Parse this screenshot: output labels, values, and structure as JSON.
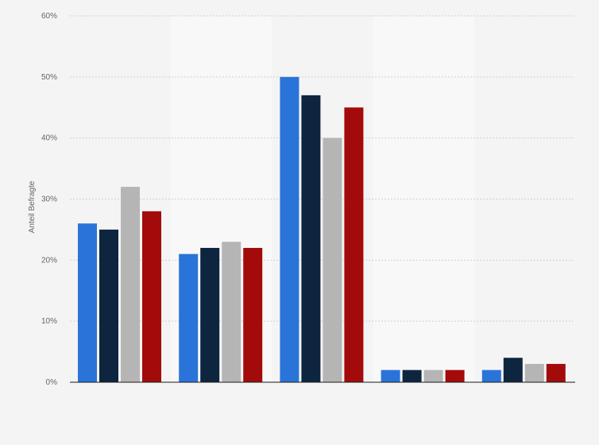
{
  "chart_data": {
    "type": "bar",
    "title": "",
    "xlabel": "",
    "ylabel": "Anteil Befragte",
    "categories": [
      "",
      "",
      "",
      "",
      ""
    ],
    "series": [
      {
        "color": "#2a74d9",
        "values": [
          26,
          21,
          50,
          2,
          2
        ]
      },
      {
        "color": "#0e2540",
        "values": [
          25,
          22,
          47,
          2,
          4
        ]
      },
      {
        "color": "#b5b5b5",
        "values": [
          32,
          23,
          40,
          2,
          3
        ]
      },
      {
        "color": "#a30b0b",
        "values": [
          28,
          22,
          45,
          2,
          3
        ]
      }
    ],
    "ylim": [
      0,
      60
    ],
    "yticks": [
      0,
      10,
      20,
      30,
      40,
      50,
      60
    ],
    "ytick_labels": [
      "0%",
      "10%",
      "20%",
      "30%",
      "40%",
      "50%",
      "60%"
    ],
    "grid": true,
    "legend": "none",
    "alternating_band_colors": [
      "#f4f4f4",
      "#f8f8f8"
    ]
  }
}
